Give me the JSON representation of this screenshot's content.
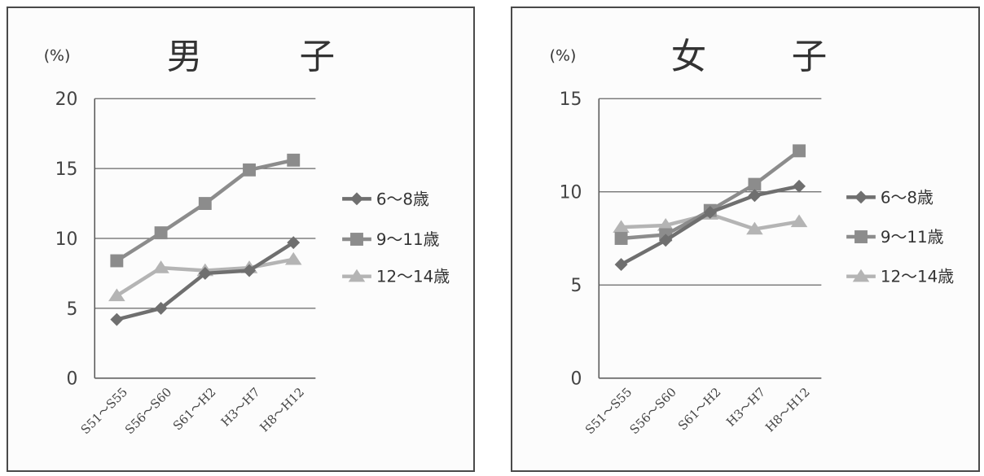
{
  "percent_label": "(%)",
  "legend": [
    "6～8歳",
    "9～11歳",
    "12～14歳"
  ],
  "colors": {
    "age_6_8": "#6f6f6f",
    "age_9_11": "#8c8c8c",
    "age_12_14": "#b4b4b4",
    "grid": "#666666"
  },
  "chart_data": [
    {
      "type": "line",
      "title": [
        "男",
        "子"
      ],
      "categories": [
        "S51～S55",
        "S56～S60",
        "S61～H2",
        "H3～H7",
        "H8～H12"
      ],
      "yticks": [
        0,
        5,
        10,
        15,
        20
      ],
      "ylim": [
        0,
        20
      ],
      "grid": true,
      "legend_position": "right",
      "series": [
        {
          "name": "6～8歳",
          "marker": "diamond",
          "values": [
            4.2,
            5.0,
            7.5,
            7.7,
            9.7
          ]
        },
        {
          "name": "9～11歳",
          "marker": "square",
          "values": [
            8.4,
            10.4,
            12.5,
            14.9,
            15.6
          ]
        },
        {
          "name": "12～14歳",
          "marker": "triangle",
          "values": [
            5.9,
            7.9,
            7.7,
            7.9,
            8.5
          ]
        }
      ]
    },
    {
      "type": "line",
      "title": [
        "女",
        "子"
      ],
      "categories": [
        "S51～S55",
        "S56～S60",
        "S61～H2",
        "H3～H7",
        "H8～H12"
      ],
      "yticks": [
        0,
        5,
        10,
        15
      ],
      "ylim": [
        0,
        15
      ],
      "grid": true,
      "legend_position": "right",
      "series": [
        {
          "name": "6～8歳",
          "marker": "diamond",
          "values": [
            6.1,
            7.4,
            8.9,
            9.8,
            10.3
          ]
        },
        {
          "name": "9～11歳",
          "marker": "square",
          "values": [
            7.5,
            7.7,
            9.0,
            10.4,
            12.2
          ]
        },
        {
          "name": "12～14歳",
          "marker": "triangle",
          "values": [
            8.1,
            8.2,
            8.8,
            8.0,
            8.4
          ]
        }
      ]
    }
  ]
}
